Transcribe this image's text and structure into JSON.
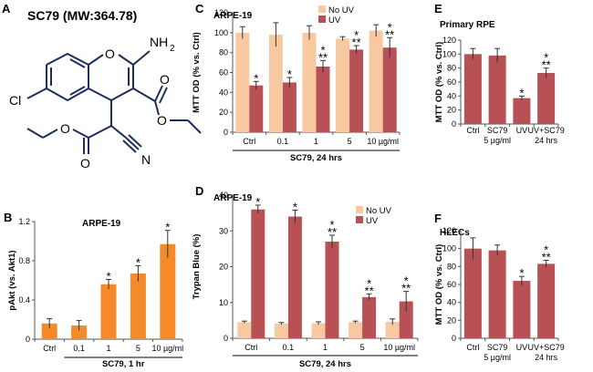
{
  "colors": {
    "orange": "#f58a2a",
    "light": "#f8c9a1",
    "red": "#b85155",
    "navy": "#1f2d5c"
  },
  "star": "*",
  "dstar": "**",
  "molecule": {
    "letter": "A",
    "title": "SC79 (MW:364.78)",
    "atoms": {
      "nh2": "NH",
      "nh2_sub": "2",
      "o_ring": "O",
      "cl": "Cl",
      "o1": "O",
      "o2": "O",
      "o3": "O",
      "o4": "O",
      "n": "N"
    }
  },
  "chart_data": [
    {
      "id": "B",
      "type": "bar",
      "letter": "B",
      "title": "ARPE-19",
      "ylabel": "pAkt (vs. Akt1)",
      "ylim": [
        0,
        1.2
      ],
      "yticks": [
        0,
        0.4,
        0.8,
        1.2
      ],
      "ytick_labels": [
        "0",
        "0.4",
        "0.8",
        "1.2"
      ],
      "categories": [
        "Ctrl",
        "0.1",
        "1",
        "5",
        "10 µg/ml"
      ],
      "series": [
        {
          "name": "pAkt",
          "values": [
            0.16,
            0.14,
            0.56,
            0.67,
            0.97
          ],
          "errors": [
            0.05,
            0.05,
            0.05,
            0.08,
            0.14
          ],
          "marks": [
            "",
            "",
            "*",
            "*",
            "*"
          ]
        }
      ],
      "xlabel": "SC79, 1 hr",
      "xlabel_from": 1
    },
    {
      "id": "C",
      "type": "bar",
      "letter": "C",
      "title": "ARPE-19",
      "ylabel": "MTT OD (% vs. Ctrl)",
      "ylim": [
        0,
        120
      ],
      "yticks": [
        0,
        20,
        40,
        60,
        80,
        100,
        120
      ],
      "ytick_labels": [
        "0",
        "20",
        "40",
        "60",
        "80",
        "100",
        "120"
      ],
      "categories": [
        "Ctrl",
        "0.1",
        "1",
        "5",
        "10 µg/ml"
      ],
      "series": [
        {
          "name": "No UV",
          "values": [
            100,
            98,
            100,
            94,
            102
          ],
          "errors": [
            6,
            12,
            7,
            2,
            6
          ],
          "marks": [
            "",
            "",
            "",
            "",
            ""
          ]
        },
        {
          "name": "UV",
          "values": [
            47,
            50,
            66,
            83,
            85
          ],
          "errors": [
            4,
            5,
            6,
            4,
            10
          ],
          "marks": [
            "*",
            "*",
            "*\n**",
            "*\n**",
            "*\n**"
          ]
        }
      ],
      "legend": [
        "No UV",
        "UV"
      ],
      "legend_position": "top",
      "xlabel": "SC79, 24 hrs",
      "xlabel_from": 0
    },
    {
      "id": "D",
      "type": "bar",
      "letter": "D",
      "title": "ARPE-19",
      "ylabel": "Trypan Blue (%)",
      "ylim": [
        0,
        40
      ],
      "yticks": [
        0,
        10,
        20,
        30,
        40
      ],
      "ytick_labels": [
        "0",
        "10",
        "20",
        "30",
        "40"
      ],
      "categories": [
        "Ctrl",
        "0.1",
        "1",
        "5",
        "10 µg/ml"
      ],
      "series": [
        {
          "name": "No UV",
          "values": [
            4.5,
            4.1,
            4.2,
            4.5,
            4.6
          ],
          "errors": [
            0.3,
            0.3,
            0.4,
            0.3,
            0.8
          ],
          "marks": [
            "",
            "",
            "",
            "",
            ""
          ]
        },
        {
          "name": "UV",
          "values": [
            36,
            34,
            27,
            11.5,
            10.3
          ],
          "errors": [
            1.2,
            1.8,
            1.8,
            0.9,
            2.8
          ],
          "marks": [
            "*",
            "*",
            "*\n**",
            "*\n**",
            "*\n**"
          ]
        }
      ],
      "legend": [
        "No UV",
        "UV"
      ],
      "legend_position": "top-right",
      "xlabel": "SC79, 24 hrs",
      "xlabel_from": 0
    },
    {
      "id": "E",
      "type": "bar",
      "letter": "E",
      "title": "Primary RPE",
      "ylabel": "MTT OD (% vs. Ctrl)",
      "ylim": [
        0,
        120
      ],
      "yticks": [
        0,
        20,
        40,
        60,
        80,
        100,
        120
      ],
      "ytick_labels": [
        "0",
        "20",
        "40",
        "60",
        "80",
        "100",
        "120"
      ],
      "categories": [
        "Ctrl",
        "SC79\n5 µg/ml",
        "UV",
        "UV+SC79\n24 hrs"
      ],
      "series": [
        {
          "name": "MTT",
          "values": [
            100,
            98,
            37,
            73
          ],
          "errors": [
            8,
            10,
            3,
            7
          ],
          "marks": [
            "",
            "",
            "*",
            "*\n**"
          ]
        }
      ]
    },
    {
      "id": "F",
      "type": "bar",
      "letter": "F",
      "title": "HLECs",
      "ylabel": "MTT OD (% vs. Ctrl)",
      "ylim": [
        0,
        120
      ],
      "yticks": [
        0,
        20,
        40,
        60,
        80,
        100,
        120
      ],
      "ytick_labels": [
        "0",
        "20",
        "40",
        "60",
        "80",
        "100",
        "120"
      ],
      "categories": [
        "Ctrl",
        "SC79\n5 µg/ml",
        "UV",
        "UV+SC79\n24 hrs"
      ],
      "series": [
        {
          "name": "MTT",
          "values": [
            100,
            98,
            64,
            83
          ],
          "errors": [
            12,
            6,
            5,
            4
          ],
          "marks": [
            "",
            "",
            "*",
            "*\n**"
          ]
        }
      ]
    }
  ]
}
